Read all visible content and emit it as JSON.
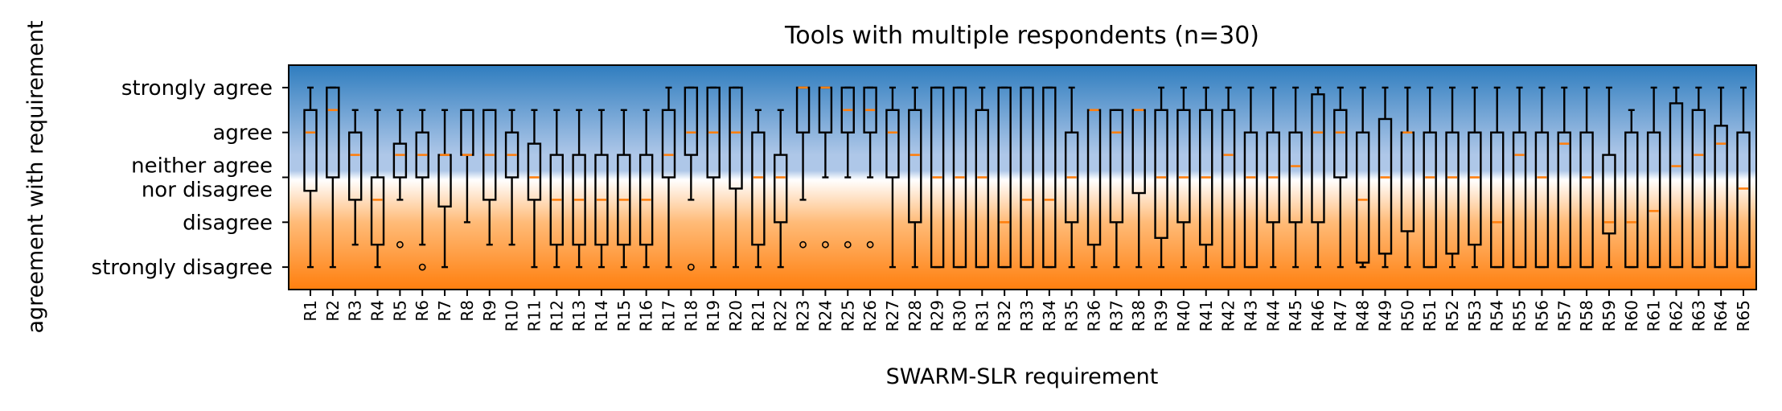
{
  "chart_data": {
    "type": "box",
    "title": "Tools with multiple respondents (n=30)",
    "xlabel": "SWARM-SLR requirement",
    "ylabel": "agreement with requirement",
    "ylim": [
      0.5,
      5.5
    ],
    "y_ticks": [
      {
        "value": 5,
        "lines": [
          "strongly agree"
        ]
      },
      {
        "value": 4,
        "lines": [
          "agree"
        ]
      },
      {
        "value": 3,
        "lines": [
          "neither agree",
          "nor disagree"
        ]
      },
      {
        "value": 2,
        "lines": [
          "disagree"
        ]
      },
      {
        "value": 1,
        "lines": [
          "strongly disagree"
        ]
      }
    ],
    "background_gradient": {
      "top": "#2f7dbf",
      "upper_mid": "#aec7e8",
      "middle": "#ffffff",
      "lower_mid": "#ffbb78",
      "bottom": "#ff7f0e",
      "split_value": 3.0
    },
    "box_color": "#000000",
    "median_color": "#ff7f0e",
    "categories": [
      "R1",
      "R2",
      "R3",
      "R4",
      "R5",
      "R6",
      "R7",
      "R8",
      "R9",
      "R10",
      "R11",
      "R12",
      "R13",
      "R14",
      "R15",
      "R16",
      "R17",
      "R18",
      "R19",
      "R20",
      "R21",
      "R22",
      "R23",
      "R24",
      "R25",
      "R26",
      "R27",
      "R28",
      "R29",
      "R30",
      "R31",
      "R32",
      "R33",
      "R34",
      "R35",
      "R36",
      "R37",
      "R38",
      "R39",
      "R40",
      "R41",
      "R42",
      "R43",
      "R44",
      "R45",
      "R46",
      "R47",
      "R48",
      "R49",
      "R50",
      "R51",
      "R52",
      "R53",
      "R54",
      "R55",
      "R56",
      "R57",
      "R58",
      "R59",
      "R60",
      "R61",
      "R62",
      "R63",
      "R64",
      "R65"
    ],
    "boxes": [
      {
        "whislo": 1,
        "q1": 2.7,
        "med": 4,
        "q3": 4.5,
        "whishi": 5,
        "fliers": []
      },
      {
        "whislo": 1,
        "q1": 3,
        "med": 4.5,
        "q3": 5,
        "whishi": 5,
        "fliers": []
      },
      {
        "whislo": 1.5,
        "q1": 2.5,
        "med": 3.5,
        "q3": 4,
        "whishi": 4.5,
        "fliers": []
      },
      {
        "whislo": 1,
        "q1": 1.5,
        "med": 2.5,
        "q3": 3,
        "whishi": 4.5,
        "fliers": []
      },
      {
        "whislo": 2.5,
        "q1": 3,
        "med": 3.5,
        "q3": 3.75,
        "whishi": 4.5,
        "fliers": [
          1.5
        ]
      },
      {
        "whislo": 1.5,
        "q1": 3,
        "med": 3.5,
        "q3": 4,
        "whishi": 4.5,
        "fliers": [
          1
        ]
      },
      {
        "whislo": 1,
        "q1": 2.35,
        "med": 3.5,
        "q3": 3.5,
        "whishi": 4.5,
        "fliers": []
      },
      {
        "whislo": 2,
        "q1": 3.5,
        "med": 3.5,
        "q3": 4.5,
        "whishi": 4.5,
        "fliers": []
      },
      {
        "whislo": 1.5,
        "q1": 2.5,
        "med": 3.5,
        "q3": 4.5,
        "whishi": 4.5,
        "fliers": []
      },
      {
        "whislo": 1.5,
        "q1": 3,
        "med": 3.5,
        "q3": 4,
        "whishi": 4.5,
        "fliers": []
      },
      {
        "whislo": 1,
        "q1": 2.5,
        "med": 3,
        "q3": 3.75,
        "whishi": 4.5,
        "fliers": []
      },
      {
        "whislo": 1,
        "q1": 1.5,
        "med": 2.5,
        "q3": 3.5,
        "whishi": 4.5,
        "fliers": []
      },
      {
        "whislo": 1,
        "q1": 1.5,
        "med": 2.5,
        "q3": 3.5,
        "whishi": 4.5,
        "fliers": []
      },
      {
        "whislo": 1,
        "q1": 1.5,
        "med": 2.5,
        "q3": 3.5,
        "whishi": 4.5,
        "fliers": []
      },
      {
        "whislo": 1,
        "q1": 1.5,
        "med": 2.5,
        "q3": 3.5,
        "whishi": 4.5,
        "fliers": []
      },
      {
        "whislo": 1,
        "q1": 1.5,
        "med": 2.5,
        "q3": 3.5,
        "whishi": 4.5,
        "fliers": []
      },
      {
        "whislo": 1,
        "q1": 3,
        "med": 3.5,
        "q3": 4.5,
        "whishi": 5,
        "fliers": []
      },
      {
        "whislo": 2.5,
        "q1": 3.5,
        "med": 4,
        "q3": 5,
        "whishi": 5,
        "fliers": [
          1
        ]
      },
      {
        "whislo": 1,
        "q1": 3,
        "med": 4,
        "q3": 5,
        "whishi": 5,
        "fliers": []
      },
      {
        "whislo": 1,
        "q1": 2.75,
        "med": 4,
        "q3": 5,
        "whishi": 5,
        "fliers": []
      },
      {
        "whislo": 1,
        "q1": 1.5,
        "med": 3,
        "q3": 4,
        "whishi": 4.5,
        "fliers": []
      },
      {
        "whislo": 1,
        "q1": 2,
        "med": 3,
        "q3": 3.5,
        "whishi": 4.5,
        "fliers": []
      },
      {
        "whislo": 2.5,
        "q1": 4,
        "med": 5,
        "q3": 5,
        "whishi": 5,
        "fliers": [
          1.5
        ]
      },
      {
        "whislo": 3,
        "q1": 4,
        "med": 5,
        "q3": 5,
        "whishi": 5,
        "fliers": [
          1.5
        ]
      },
      {
        "whislo": 3,
        "q1": 4,
        "med": 4.5,
        "q3": 5,
        "whishi": 5,
        "fliers": [
          1.5
        ]
      },
      {
        "whislo": 3,
        "q1": 4,
        "med": 4.5,
        "q3": 5,
        "whishi": 5,
        "fliers": [
          1.5
        ]
      },
      {
        "whislo": 1,
        "q1": 3,
        "med": 4,
        "q3": 4.5,
        "whishi": 5,
        "fliers": []
      },
      {
        "whislo": 1,
        "q1": 2,
        "med": 3.5,
        "q3": 4.5,
        "whishi": 5,
        "fliers": []
      },
      {
        "whislo": 1,
        "q1": 1,
        "med": 3,
        "q3": 5,
        "whishi": 5,
        "fliers": []
      },
      {
        "whislo": 1,
        "q1": 1,
        "med": 3,
        "q3": 5,
        "whishi": 5,
        "fliers": []
      },
      {
        "whislo": 1,
        "q1": 1,
        "med": 3,
        "q3": 4.5,
        "whishi": 5,
        "fliers": []
      },
      {
        "whislo": 1,
        "q1": 1,
        "med": 2,
        "q3": 5,
        "whishi": 5,
        "fliers": []
      },
      {
        "whislo": 1,
        "q1": 1,
        "med": 2.5,
        "q3": 5,
        "whishi": 5,
        "fliers": []
      },
      {
        "whislo": 1,
        "q1": 1,
        "med": 2.5,
        "q3": 5,
        "whishi": 5,
        "fliers": []
      },
      {
        "whislo": 1,
        "q1": 2,
        "med": 3,
        "q3": 4,
        "whishi": 5,
        "fliers": []
      },
      {
        "whislo": 1,
        "q1": 1.5,
        "med": 4.5,
        "q3": 4.5,
        "whishi": 4.5,
        "fliers": []
      },
      {
        "whislo": 1,
        "q1": 2,
        "med": 4,
        "q3": 4.5,
        "whishi": 4.5,
        "fliers": []
      },
      {
        "whislo": 1,
        "q1": 2.65,
        "med": 4.5,
        "q3": 4.5,
        "whishi": 4.5,
        "fliers": []
      },
      {
        "whislo": 1,
        "q1": 1.65,
        "med": 3,
        "q3": 4.5,
        "whishi": 5,
        "fliers": []
      },
      {
        "whislo": 1,
        "q1": 2,
        "med": 3,
        "q3": 4.5,
        "whishi": 5,
        "fliers": []
      },
      {
        "whislo": 1,
        "q1": 1.5,
        "med": 3,
        "q3": 4.5,
        "whishi": 5,
        "fliers": []
      },
      {
        "whislo": 1,
        "q1": 1,
        "med": 3.5,
        "q3": 4.5,
        "whishi": 5,
        "fliers": []
      },
      {
        "whislo": 1,
        "q1": 1,
        "med": 3,
        "q3": 4,
        "whishi": 5,
        "fliers": []
      },
      {
        "whislo": 1,
        "q1": 2,
        "med": 3,
        "q3": 4,
        "whishi": 5,
        "fliers": []
      },
      {
        "whislo": 1,
        "q1": 2,
        "med": 3.25,
        "q3": 4,
        "whishi": 5,
        "fliers": []
      },
      {
        "whislo": 1,
        "q1": 2,
        "med": 4,
        "q3": 4.85,
        "whishi": 5,
        "fliers": []
      },
      {
        "whislo": 1,
        "q1": 3,
        "med": 4,
        "q3": 4.5,
        "whishi": 5,
        "fliers": []
      },
      {
        "whislo": 1,
        "q1": 1.1,
        "med": 2.5,
        "q3": 4,
        "whishi": 5,
        "fliers": []
      },
      {
        "whislo": 1,
        "q1": 1.3,
        "med": 3,
        "q3": 4.3,
        "whishi": 5,
        "fliers": []
      },
      {
        "whislo": 1,
        "q1": 1.8,
        "med": 4,
        "q3": 4,
        "whishi": 5,
        "fliers": []
      },
      {
        "whislo": 1,
        "q1": 1,
        "med": 3,
        "q3": 4,
        "whishi": 5,
        "fliers": []
      },
      {
        "whislo": 1,
        "q1": 1.3,
        "med": 3,
        "q3": 4,
        "whishi": 5,
        "fliers": []
      },
      {
        "whislo": 1,
        "q1": 1.5,
        "med": 3,
        "q3": 4,
        "whishi": 5,
        "fliers": []
      },
      {
        "whislo": 1,
        "q1": 1,
        "med": 2,
        "q3": 4,
        "whishi": 5,
        "fliers": []
      },
      {
        "whislo": 1,
        "q1": 1,
        "med": 3.5,
        "q3": 4,
        "whishi": 5,
        "fliers": []
      },
      {
        "whislo": 1,
        "q1": 1,
        "med": 3,
        "q3": 4,
        "whishi": 5,
        "fliers": []
      },
      {
        "whislo": 1,
        "q1": 1,
        "med": 3.75,
        "q3": 4,
        "whishi": 5,
        "fliers": []
      },
      {
        "whislo": 1,
        "q1": 1,
        "med": 3,
        "q3": 4,
        "whishi": 5,
        "fliers": []
      },
      {
        "whislo": 1,
        "q1": 1.75,
        "med": 2,
        "q3": 3.5,
        "whishi": 5,
        "fliers": []
      },
      {
        "whislo": 1,
        "q1": 1,
        "med": 2,
        "q3": 4,
        "whishi": 4.5,
        "fliers": []
      },
      {
        "whislo": 1,
        "q1": 1,
        "med": 2.25,
        "q3": 4,
        "whishi": 5,
        "fliers": []
      },
      {
        "whislo": 1,
        "q1": 1,
        "med": 3.25,
        "q3": 4.65,
        "whishi": 5,
        "fliers": []
      },
      {
        "whislo": 1,
        "q1": 1,
        "med": 3.5,
        "q3": 4.5,
        "whishi": 5,
        "fliers": []
      },
      {
        "whislo": 1,
        "q1": 1,
        "med": 3.75,
        "q3": 4.15,
        "whishi": 5,
        "fliers": []
      },
      {
        "whislo": 1,
        "q1": 1,
        "med": 2.75,
        "q3": 4,
        "whishi": 5,
        "fliers": []
      }
    ]
  }
}
